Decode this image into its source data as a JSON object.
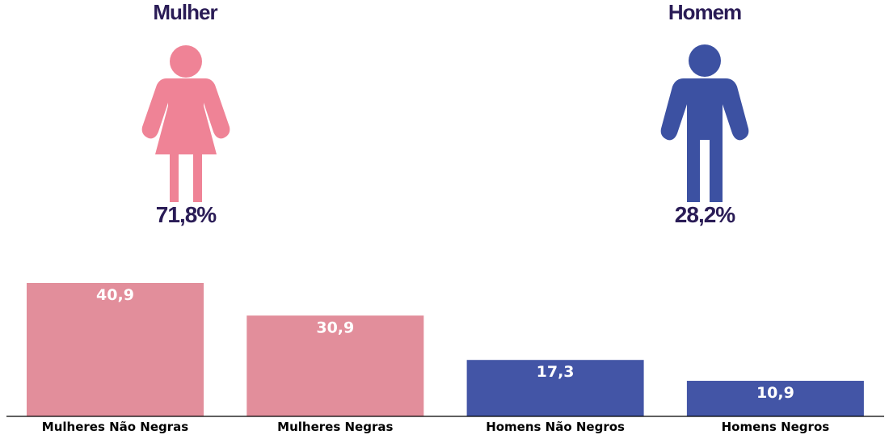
{
  "panels": {
    "female": {
      "title": "Mulher",
      "percent": "71,8%",
      "icon": "woman-icon",
      "color": "#ef8396"
    },
    "male": {
      "title": "Homem",
      "percent": "28,2%",
      "icon": "man-icon",
      "color": "#3c51a2"
    }
  },
  "chart_data": {
    "type": "bar",
    "categories": [
      "Mulheres Não Negras",
      "Mulheres Negras",
      "Homens Não Negros",
      "Homens Negros"
    ],
    "values": [
      40.9,
      30.9,
      17.3,
      10.9
    ],
    "value_labels": [
      "40,9",
      "30,9",
      "17,3",
      "10,9"
    ],
    "colors": [
      "#e28e9b",
      "#e28e9b",
      "#4355a6",
      "#4355a6"
    ],
    "title": "",
    "xlabel": "",
    "ylabel": "",
    "ylim": [
      0,
      40.9
    ],
    "grid": false,
    "legend": "none"
  }
}
